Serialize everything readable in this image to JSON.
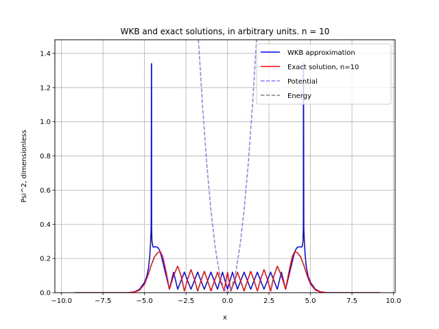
{
  "chart_data": {
    "type": "line",
    "title": "WKB and exact solutions, in arbitrary units. n = 10",
    "xlabel": "x",
    "ylabel": "Psi^2, dimensionless",
    "xlim": [
      -10.4,
      10.1
    ],
    "ylim": [
      0,
      1.48
    ],
    "xticks": [
      -10.0,
      -7.5,
      -5.0,
      -2.5,
      0.0,
      2.5,
      5.0,
      7.5,
      10.0
    ],
    "xtick_labels": [
      "−10.0",
      "−7.5",
      "−5.0",
      "−2.5",
      "0.0",
      "2.5",
      "5.0",
      "7.5",
      "10.0"
    ],
    "yticks": [
      0.0,
      0.2,
      0.4,
      0.6,
      0.8,
      1.0,
      1.2,
      1.4
    ],
    "ytick_labels": [
      "0.0",
      "0.2",
      "0.4",
      "0.6",
      "0.8",
      "1.0",
      "1.2",
      "1.4"
    ],
    "grid": true,
    "legend_position": "top-right",
    "series": [
      {
        "name": "WKB approximation",
        "color": "#0000ff",
        "style": "solid",
        "x": [
          -9.2,
          -6.0,
          -5.6,
          -5.3,
          -5.0,
          -4.85,
          -4.75,
          -4.68,
          -4.63,
          -4.6,
          -4.58,
          -4.575,
          -4.57,
          -4.55,
          -4.5,
          -4.45,
          -4.4,
          -4.3,
          -4.2,
          -4.1,
          -4.0,
          -3.9,
          -3.7,
          -3.5,
          -3.25,
          -3.0,
          -2.6,
          -2.2,
          -1.8,
          -1.4,
          -1.0,
          -0.6,
          -0.3,
          0.0,
          0.3,
          0.6,
          1.0,
          1.4,
          1.8,
          2.2,
          2.6,
          3.0,
          3.25,
          3.5,
          3.7,
          3.9,
          4.0,
          4.1,
          4.2,
          4.3,
          4.4,
          4.45,
          4.5,
          4.55,
          4.57,
          4.575,
          4.58,
          4.6,
          4.63,
          4.68,
          4.75,
          4.85,
          5.0,
          5.3,
          5.6,
          6.0,
          9.2
        ],
        "y": [
          0.0,
          0.0,
          0.005,
          0.02,
          0.06,
          0.1,
          0.15,
          0.22,
          0.3,
          0.38,
          1.34,
          1.34,
          0.38,
          0.3,
          0.27,
          0.266,
          0.268,
          0.268,
          0.265,
          0.25,
          0.22,
          0.18,
          0.1,
          0.02,
          0.12,
          0.02,
          0.12,
          0.02,
          0.12,
          0.02,
          0.12,
          0.02,
          0.12,
          0.02,
          0.12,
          0.02,
          0.12,
          0.02,
          0.12,
          0.02,
          0.12,
          0.02,
          0.12,
          0.02,
          0.1,
          0.18,
          0.22,
          0.25,
          0.265,
          0.268,
          0.268,
          0.266,
          0.27,
          0.3,
          0.38,
          1.34,
          1.34,
          0.38,
          0.3,
          0.22,
          0.15,
          0.1,
          0.06,
          0.02,
          0.005,
          0.0,
          0.0
        ]
      },
      {
        "name": "Exact solution, n=10",
        "color": "#ff0000",
        "style": "solid",
        "x": [
          -9.2,
          -6.0,
          -5.6,
          -5.3,
          -5.0,
          -4.8,
          -4.6,
          -4.4,
          -4.2,
          -4.05,
          -3.9,
          -3.7,
          -3.5,
          -3.25,
          -3.0,
          -2.8,
          -2.6,
          -2.4,
          -2.2,
          -2.0,
          -1.8,
          -1.6,
          -1.4,
          -1.2,
          -1.0,
          -0.8,
          -0.6,
          -0.4,
          -0.2,
          0.0,
          0.2,
          0.4,
          0.6,
          0.8,
          1.0,
          1.2,
          1.4,
          1.6,
          1.8,
          2.0,
          2.2,
          2.4,
          2.6,
          2.8,
          3.0,
          3.25,
          3.5,
          3.7,
          3.9,
          4.05,
          4.2,
          4.4,
          4.6,
          4.8,
          5.0,
          5.3,
          5.6,
          6.0,
          9.2
        ],
        "y": [
          0.0,
          0.0,
          0.004,
          0.015,
          0.05,
          0.1,
          0.16,
          0.21,
          0.235,
          0.24,
          0.21,
          0.12,
          0.02,
          0.1,
          0.155,
          0.1,
          0.01,
          0.08,
          0.135,
          0.08,
          0.01,
          0.07,
          0.125,
          0.07,
          0.01,
          0.065,
          0.12,
          0.06,
          0.01,
          0.12,
          0.01,
          0.06,
          0.12,
          0.065,
          0.01,
          0.07,
          0.125,
          0.07,
          0.01,
          0.08,
          0.135,
          0.08,
          0.01,
          0.1,
          0.155,
          0.1,
          0.02,
          0.12,
          0.21,
          0.24,
          0.235,
          0.21,
          0.16,
          0.1,
          0.05,
          0.015,
          0.004,
          0.0,
          0.0
        ]
      },
      {
        "name": "Potential",
        "color": "#7f7fff",
        "style": "dashed",
        "x": [
          -1.75,
          -1.5,
          -1.25,
          -1.0,
          -0.75,
          -0.5,
          -0.25,
          0.0,
          0.25,
          0.5,
          0.75,
          1.0,
          1.25,
          1.5,
          1.75
        ],
        "y": [
          1.48,
          1.087,
          0.755,
          0.483,
          0.272,
          0.121,
          0.03,
          0.0,
          0.03,
          0.121,
          0.272,
          0.483,
          0.755,
          1.087,
          1.48
        ]
      },
      {
        "name": "Energy",
        "color": "#808080",
        "style": "dashed",
        "x": [],
        "y": []
      }
    ]
  }
}
